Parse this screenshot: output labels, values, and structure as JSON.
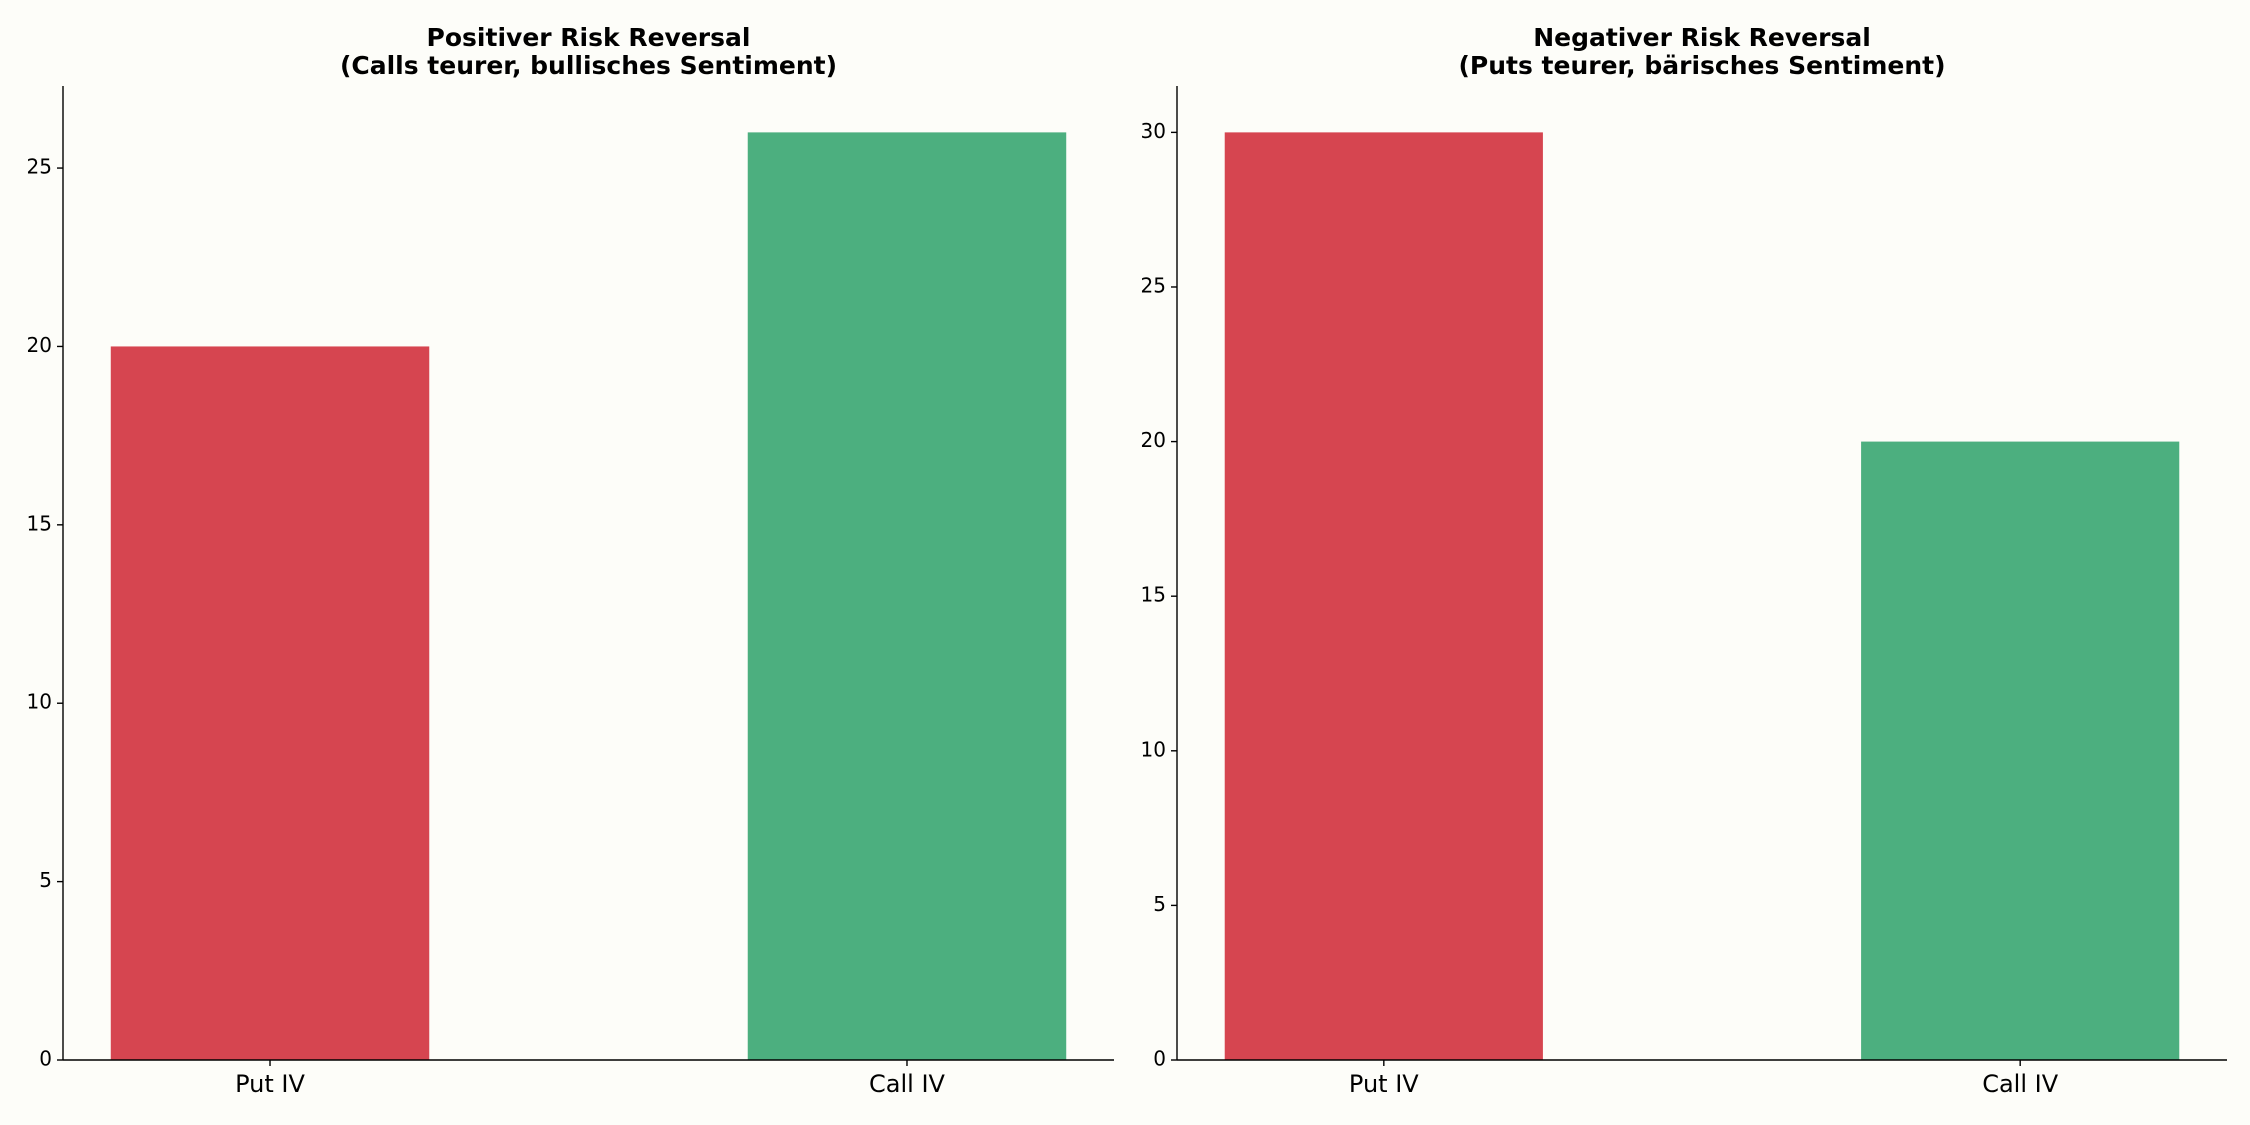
{
  "chart_data": [
    {
      "type": "bar",
      "title": "Positiver Risk Reversal\n(Calls teurer, bullisches Sentiment)",
      "categories": [
        "Put IV",
        "Call IV"
      ],
      "values": [
        20,
        26
      ],
      "colors": [
        "#d64550",
        "#4caf7f"
      ],
      "ylim": [
        0,
        27.3
      ],
      "yticks": [
        0,
        5,
        10,
        15,
        20,
        25
      ],
      "grid": false
    },
    {
      "type": "bar",
      "title": "Negativer Risk Reversal\n(Puts teurer, bärisches Sentiment)",
      "categories": [
        "Put IV",
        "Call IV"
      ],
      "values": [
        30,
        20
      ],
      "colors": [
        "#d64550",
        "#4caf7f"
      ],
      "ylim": [
        0,
        31.5
      ],
      "yticks": [
        0,
        5,
        10,
        15,
        20,
        25,
        30
      ],
      "grid": false
    }
  ]
}
